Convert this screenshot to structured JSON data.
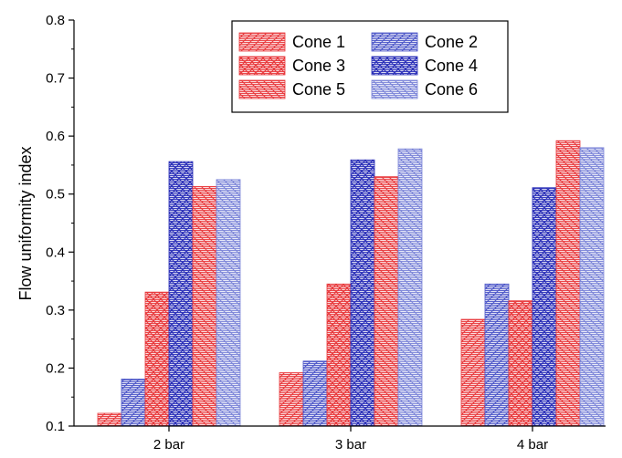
{
  "chart_data": {
    "type": "bar",
    "title": "",
    "xlabel": "",
    "ylabel": "Flow uniformity index",
    "ylim": [
      0.1,
      0.8
    ],
    "yticks": [
      "0.1",
      "0.2",
      "0.3",
      "0.4",
      "0.5",
      "0.6",
      "0.7",
      "0.8"
    ],
    "categories": [
      "2 bar",
      "3 bar",
      "4 bar"
    ],
    "series": [
      {
        "name": "Cone 1",
        "values": [
          0.122,
          0.192,
          0.284
        ],
        "color": "#e8383b",
        "pattern": "hlines-diag-right"
      },
      {
        "name": "Cone 2",
        "values": [
          0.181,
          0.212,
          0.345
        ],
        "color": "#4b55c8",
        "pattern": "hlines-diag-right"
      },
      {
        "name": "Cone 3",
        "values": [
          0.331,
          0.345,
          0.316
        ],
        "color": "#e8383b",
        "pattern": "hlines-cross"
      },
      {
        "name": "Cone 4",
        "values": [
          0.556,
          0.559,
          0.511
        ],
        "color": "#2a2fb8",
        "pattern": "hlines-cross"
      },
      {
        "name": "Cone 5",
        "values": [
          0.513,
          0.53,
          0.592
        ],
        "color": "#e8383b",
        "pattern": "hlines-diag-left"
      },
      {
        "name": "Cone 6",
        "values": [
          0.525,
          0.578,
          0.58
        ],
        "color": "#7b84d8",
        "pattern": "hlines-diag-left"
      }
    ],
    "grid": false,
    "legend_position": "top-right"
  }
}
